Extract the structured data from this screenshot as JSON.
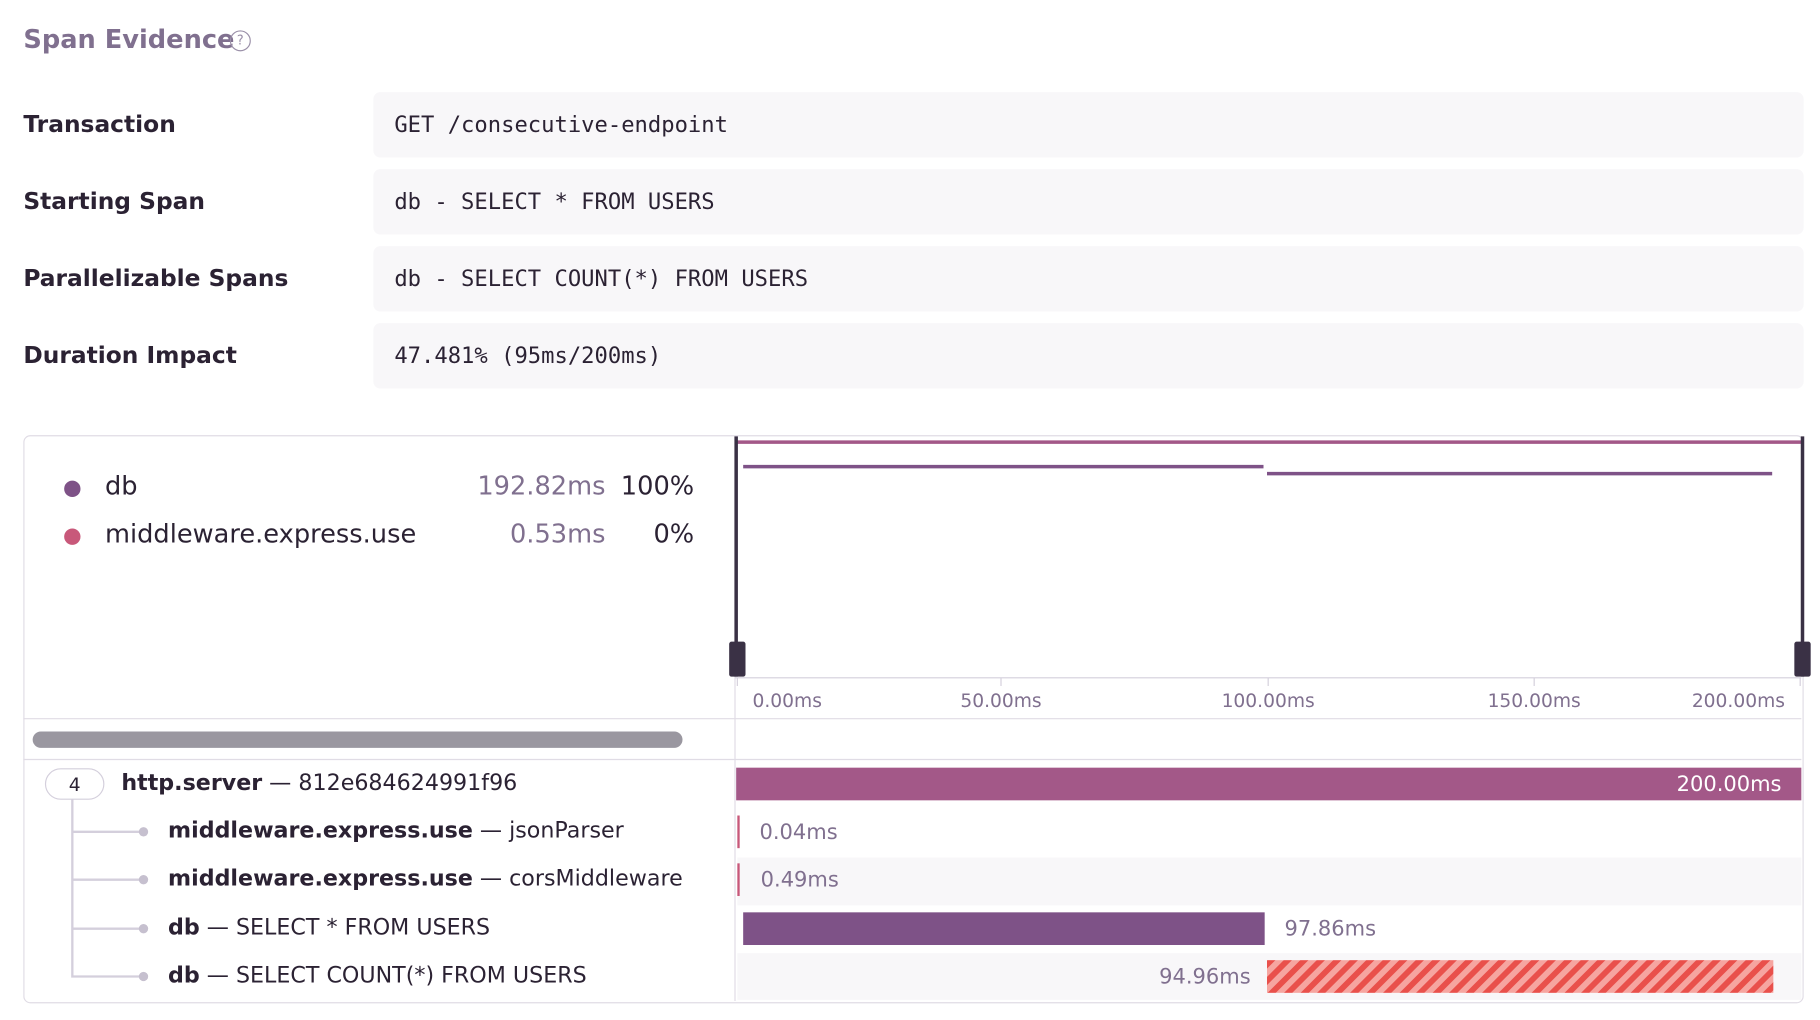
{
  "header": {
    "title": "Span Evidence"
  },
  "rows": [
    {
      "label": "Transaction",
      "value": "GET /consecutive-endpoint"
    },
    {
      "label": "Starting Span",
      "value": "db - SELECT * FROM USERS"
    },
    {
      "label": "Parallelizable Spans",
      "value": "db - SELECT COUNT(*) FROM USERS"
    },
    {
      "label": "Duration Impact",
      "value": "47.481% (95ms/200ms)"
    }
  ],
  "legend": [
    {
      "name": "db",
      "duration": "192.82ms",
      "percent": "100%"
    },
    {
      "name": "middleware.express.use",
      "duration": "0.53ms",
      "percent": "0%"
    }
  ],
  "axis": [
    "0.00ms",
    "50.00ms",
    "100.00ms",
    "150.00ms",
    "200.00ms"
  ],
  "tree": {
    "count": "4",
    "spans": [
      {
        "op": "http.server",
        "description": "— 812e684624991f96",
        "duration": "200.00ms"
      },
      {
        "op": "middleware.express.use",
        "description": "— jsonParser",
        "duration": "0.04ms"
      },
      {
        "op": "middleware.express.use",
        "description": "— corsMiddleware",
        "duration": "0.49ms"
      },
      {
        "op": "db",
        "description": "— SELECT * FROM USERS",
        "duration": "97.86ms"
      },
      {
        "op": "db",
        "description": "— SELECT COUNT(*) FROM USERS",
        "duration": "94.96ms"
      }
    ]
  }
}
